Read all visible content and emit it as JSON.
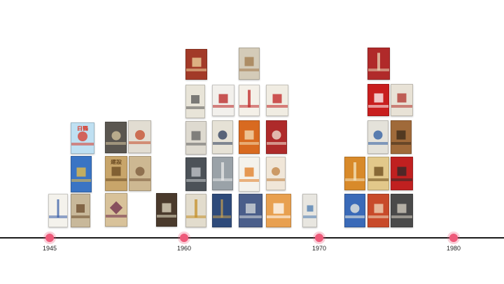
{
  "timeline": {
    "line_color": "#1a1a1a",
    "marker_color": "#ee5a7a",
    "years": [
      {
        "label": "1945"
      },
      {
        "label": "1960"
      },
      {
        "label": "1970"
      },
      {
        "label": "1980"
      }
    ]
  },
  "packs": [
    {
      "text": "",
      "bg": "#f4f2ec",
      "accent": "#3a5fa8",
      "style": "text-lines"
    },
    {
      "text": "",
      "bg": "#c8b89a",
      "accent": "#6b4a2a",
      "style": "label-box"
    },
    {
      "text": "白鶴",
      "bg": "#bfe0f2",
      "accent": "#d83a2a",
      "style": "bird"
    },
    {
      "text": "",
      "bg": "#3a74c4",
      "accent": "#f0c040",
      "style": "rooster"
    },
    {
      "text": "",
      "bg": "#5a5650",
      "accent": "#d8c8a0",
      "style": "emblem"
    },
    {
      "text": "建設",
      "bg": "#c8a56a",
      "accent": "#6a4a22",
      "style": "plain-title"
    },
    {
      "text": "",
      "bg": "#d8c29a",
      "accent": "#6e2a4a",
      "style": "diamond"
    },
    {
      "text": "",
      "bg": "#e2ddd2",
      "accent": "#c44a2a",
      "style": "eagle"
    },
    {
      "text": "",
      "bg": "#cdb892",
      "accent": "#7a5a3a",
      "style": "star-frame"
    },
    {
      "text": "",
      "bg": "#4a3a2c",
      "accent": "#e8e0c8",
      "style": "deer"
    },
    {
      "text": "",
      "bg": "#a23a28",
      "accent": "#f0d8a0",
      "style": "red-top"
    },
    {
      "text": "",
      "bg": "#e8e4d8",
      "accent": "#555555",
      "style": "gray-frame"
    },
    {
      "text": "",
      "bg": "#dedad0",
      "accent": "#606060",
      "style": "butterfly"
    },
    {
      "text": "",
      "bg": "#4c5258",
      "accent": "#c8ccd0",
      "style": "pattern"
    },
    {
      "text": "",
      "bg": "#e2dccd",
      "accent": "#c4902a",
      "style": "stripe-center"
    },
    {
      "text": "",
      "bg": "#f2f0ec",
      "accent": "#b82020",
      "style": "white-red"
    },
    {
      "text": "",
      "bg": "#e6e2d6",
      "accent": "#2a3a5a",
      "style": "circle"
    },
    {
      "text": "",
      "bg": "#9aa2a8",
      "accent": "#e8e8e8",
      "style": "gray-v"
    },
    {
      "text": "",
      "bg": "#2e4a7a",
      "accent": "#c8a050",
      "style": "blue-stripes"
    },
    {
      "text": "",
      "bg": "#d4cbb8",
      "accent": "#a0784a",
      "style": "brown-note"
    },
    {
      "text": "",
      "bg": "#f4f0e8",
      "accent": "#c02828",
      "style": "white-red-lines"
    },
    {
      "text": "",
      "bg": "#d86a20",
      "accent": "#f4e0b8",
      "style": "orange-flag"
    },
    {
      "text": "",
      "bg": "#f4f2ec",
      "accent": "#e07a20",
      "style": "white-orange"
    },
    {
      "text": "",
      "bg": "#4a5e8a",
      "accent": "#d8dcdc",
      "style": "pattern-blue"
    },
    {
      "text": "",
      "bg": "#f0ece2",
      "accent": "#c02020",
      "style": "white-red-top"
    },
    {
      "text": "",
      "bg": "#ae2a2a",
      "accent": "#f2e8d8",
      "style": "red-emblem"
    },
    {
      "text": "",
      "bg": "#f0e6d8",
      "accent": "#c08040",
      "style": "pale-crest"
    },
    {
      "text": "",
      "bg": "#e8a050",
      "accent": "#ffffff",
      "style": "orange-plain"
    },
    {
      "text": "",
      "bg": "#e8e6e0",
      "accent": "#4a7ab0",
      "style": "white-blue"
    },
    {
      "text": "",
      "bg": "#b02a2a",
      "accent": "#e8d8b8",
      "style": "red-slim"
    },
    {
      "text": "",
      "bg": "#c81e1e",
      "accent": "#ffffff",
      "style": "red-box"
    },
    {
      "text": "",
      "bg": "#e8e2d6",
      "accent": "#b0302a",
      "style": "figure"
    },
    {
      "text": "",
      "bg": "#e4e2da",
      "accent": "#2a5aa0",
      "style": "bird-blue"
    },
    {
      "text": "",
      "bg": "#a06a3a",
      "accent": "#3a2a1a",
      "style": "brown-box"
    },
    {
      "text": "",
      "bg": "#d88a2a",
      "accent": "#f4e4c0",
      "style": "orange-lines"
    },
    {
      "text": "",
      "bg": "#e2c88a",
      "accent": "#6a4a1a",
      "style": "gold-label"
    },
    {
      "text": "",
      "bg": "#c02020",
      "accent": "#2a2a2a",
      "style": "red-dark"
    },
    {
      "text": "",
      "bg": "#3a6ab8",
      "accent": "#f4f0e0",
      "style": "blue-seal"
    },
    {
      "text": "",
      "bg": "#c84a2a",
      "accent": "#f0dcc0",
      "style": "sunset"
    },
    {
      "text": "",
      "bg": "#4a4a4a",
      "accent": "#d8d2c4",
      "style": "mountain"
    },
    {
      "text": "",
      "bg": "#6a4a3a",
      "accent": "#e8dccc",
      "style": "landscape"
    }
  ]
}
